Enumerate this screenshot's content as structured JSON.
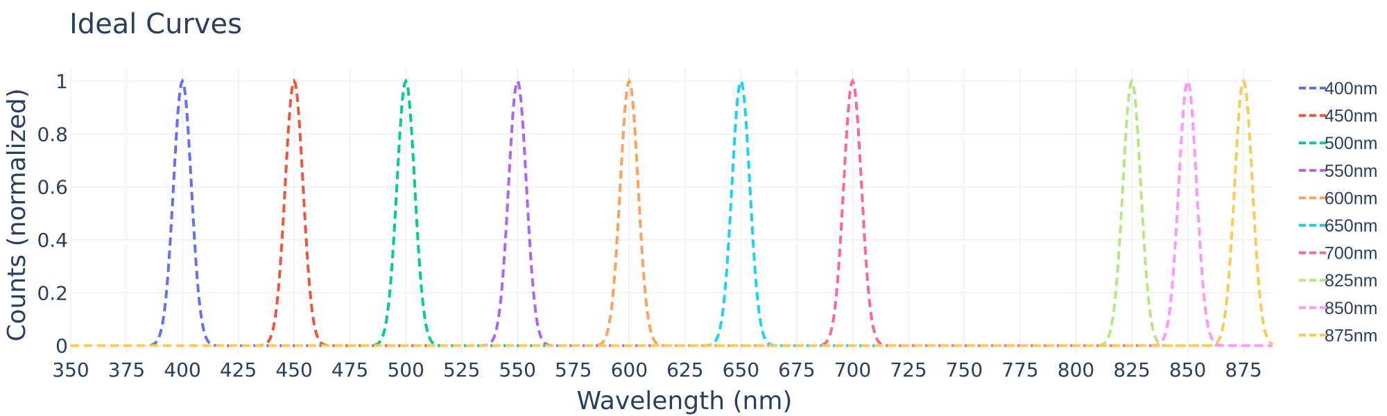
{
  "chart_data": {
    "type": "line",
    "title": "Ideal Curves",
    "xlabel": "Wavelength (nm)",
    "ylabel": "Counts (normalized)",
    "xlim": [
      350,
      888
    ],
    "ylim": [
      -0.03,
      1.05
    ],
    "x_ticks": [
      350,
      375,
      400,
      425,
      450,
      475,
      500,
      525,
      550,
      575,
      600,
      625,
      650,
      675,
      700,
      725,
      750,
      775,
      800,
      825,
      850,
      875
    ],
    "y_ticks": [
      0,
      0.2,
      0.4,
      0.6,
      0.8,
      1
    ],
    "y_tick_labels": [
      "0",
      "0.2",
      "0.4",
      "0.6",
      "0.8",
      "1"
    ],
    "grid": true,
    "legend_position": "right",
    "line_style": "dashed",
    "curve_shape": "gaussian",
    "curve_sigma_nm": 4,
    "series": [
      {
        "name": "400nm",
        "center": 400,
        "peak": 1,
        "color": "#636efa"
      },
      {
        "name": "450nm",
        "center": 450,
        "peak": 1,
        "color": "#ef553b"
      },
      {
        "name": "500nm",
        "center": 500,
        "peak": 1,
        "color": "#00cc96"
      },
      {
        "name": "550nm",
        "center": 550,
        "peak": 1,
        "color": "#ab63fa"
      },
      {
        "name": "600nm",
        "center": 600,
        "peak": 1,
        "color": "#ffa15a"
      },
      {
        "name": "650nm",
        "center": 650,
        "peak": 1,
        "color": "#19d3f3"
      },
      {
        "name": "700nm",
        "center": 700,
        "peak": 1,
        "color": "#ff6692"
      },
      {
        "name": "825nm",
        "center": 825,
        "peak": 1,
        "color": "#b6e880"
      },
      {
        "name": "850nm",
        "center": 850,
        "peak": 1,
        "color": "#ff97ff"
      },
      {
        "name": "875nm",
        "center": 875,
        "peak": 1,
        "color": "#fecb52"
      }
    ]
  }
}
